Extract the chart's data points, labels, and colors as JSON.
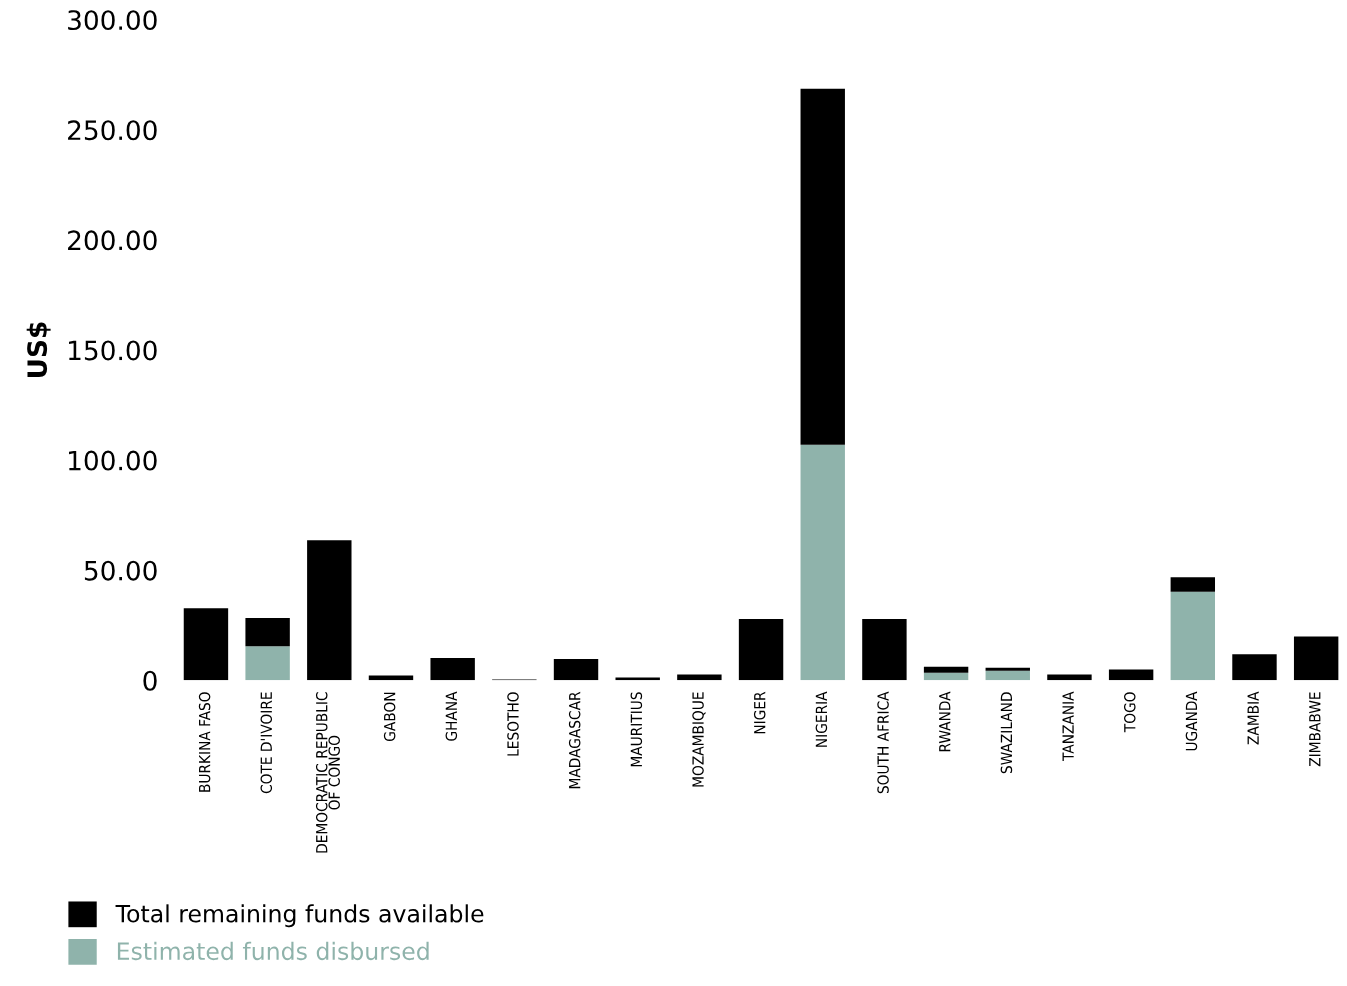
{
  "chart_data": {
    "type": "bar",
    "stacked": true,
    "ylabel": "US$",
    "categories": [
      "BURKINA FASO",
      "COTE D'IVOIRE",
      "DEMOCRATIC REPUBLIC\nOF CONGO",
      "GABON",
      "GHANA",
      "LESOTHO",
      "MADAGASCAR",
      "MAURITIUS",
      "MOZAMBIQUE",
      "NIGER",
      "NIGERIA",
      "SOUTH AFRICA",
      "RWANDA",
      "SWAZILAND",
      "TANZANIA",
      "TOGO",
      "UGANDA",
      "ZAMBIA",
      "ZIMBABWE"
    ],
    "series": [
      {
        "name": "Estimated funds disbursed",
        "color": "#8fb3ab",
        "values": [
          0,
          15.5,
          0,
          0,
          0,
          0,
          0,
          0,
          0,
          0,
          107,
          0,
          3.5,
          4.4,
          0,
          0,
          40.2,
          0,
          0
        ]
      },
      {
        "name": "Total remaining funds available",
        "color": "#000000",
        "values": [
          32.7,
          12.8,
          63.6,
          2.2,
          10.2,
          0.4,
          9.7,
          1.3,
          2.7,
          27.8,
          161.7,
          27.8,
          2.7,
          1.3,
          2.7,
          4.9,
          6.6,
          11.9,
          19.9
        ]
      }
    ],
    "ylim": [
      0,
      300
    ],
    "yticks": [
      {
        "value": 0,
        "label": "0"
      },
      {
        "value": 50,
        "label": "50.00"
      },
      {
        "value": 100,
        "label": "100.00"
      },
      {
        "value": 150,
        "label": "150.00"
      },
      {
        "value": 200,
        "label": "200.00"
      },
      {
        "value": 250,
        "label": "250.00"
      },
      {
        "value": 300,
        "label": "300.00"
      }
    ],
    "grid": false,
    "legend": "bottom left"
  }
}
